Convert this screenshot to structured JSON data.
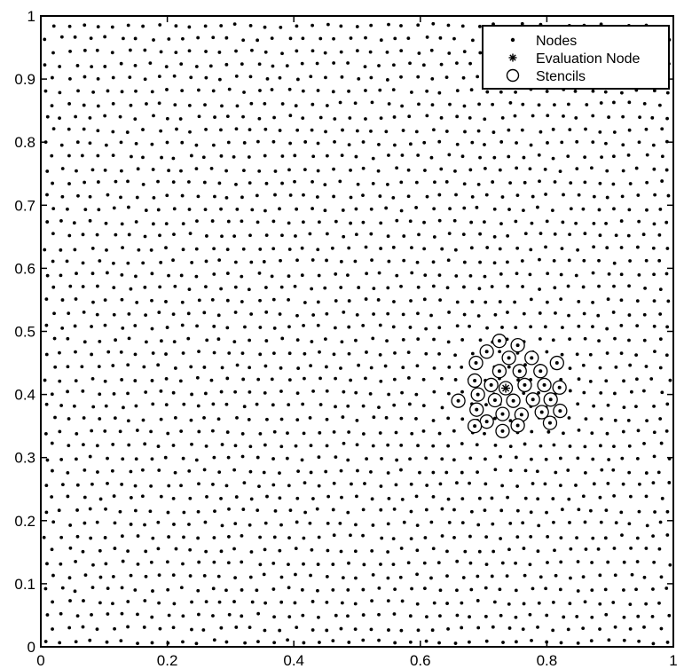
{
  "chart_data": {
    "type": "scatter",
    "title": "",
    "xlabel": "",
    "ylabel": "",
    "xlim": [
      0,
      1
    ],
    "ylim": [
      0,
      1
    ],
    "grid": false,
    "legend_placement": "top-right",
    "x_ticks": [
      "0",
      "0.2",
      "0.4",
      "0.6",
      "0.8",
      "1"
    ],
    "y_ticks": [
      "0",
      "0.1",
      "0.2",
      "0.3",
      "0.4",
      "0.5",
      "0.6",
      "0.7",
      "0.8",
      "0.9",
      "1"
    ],
    "series": [
      {
        "name": "Nodes",
        "marker": "dot",
        "color": "#000000",
        "distribution": "quasi-uniform hexagonal-like node set filling the unit square",
        "approx_spacing": 0.024
      },
      {
        "name": "Evaluation Node",
        "marker": "asterisk",
        "color": "#000000",
        "points": [
          [
            0.735,
            0.41
          ]
        ]
      },
      {
        "name": "Stencils",
        "marker": "circle",
        "color": "#000000",
        "points": [
          [
            0.725,
            0.485
          ],
          [
            0.754,
            0.478
          ],
          [
            0.705,
            0.468
          ],
          [
            0.74,
            0.458
          ],
          [
            0.776,
            0.458
          ],
          [
            0.688,
            0.45
          ],
          [
            0.725,
            0.437
          ],
          [
            0.757,
            0.437
          ],
          [
            0.79,
            0.437
          ],
          [
            0.816,
            0.45
          ],
          [
            0.686,
            0.422
          ],
          [
            0.712,
            0.415
          ],
          [
            0.765,
            0.415
          ],
          [
            0.796,
            0.415
          ],
          [
            0.82,
            0.411
          ],
          [
            0.66,
            0.39
          ],
          [
            0.691,
            0.4
          ],
          [
            0.718,
            0.391
          ],
          [
            0.747,
            0.39
          ],
          [
            0.778,
            0.392
          ],
          [
            0.806,
            0.392
          ],
          [
            0.689,
            0.376
          ],
          [
            0.73,
            0.369
          ],
          [
            0.76,
            0.368
          ],
          [
            0.792,
            0.372
          ],
          [
            0.821,
            0.374
          ],
          [
            0.705,
            0.357
          ],
          [
            0.754,
            0.351
          ],
          [
            0.686,
            0.35
          ],
          [
            0.805,
            0.355
          ],
          [
            0.73,
            0.342
          ]
        ]
      }
    ],
    "legend": {
      "items": [
        {
          "label": "Nodes",
          "marker": "dot"
        },
        {
          "label": "Evaluation Node",
          "marker": "asterisk"
        },
        {
          "label": "Stencils",
          "marker": "circle"
        }
      ]
    }
  }
}
